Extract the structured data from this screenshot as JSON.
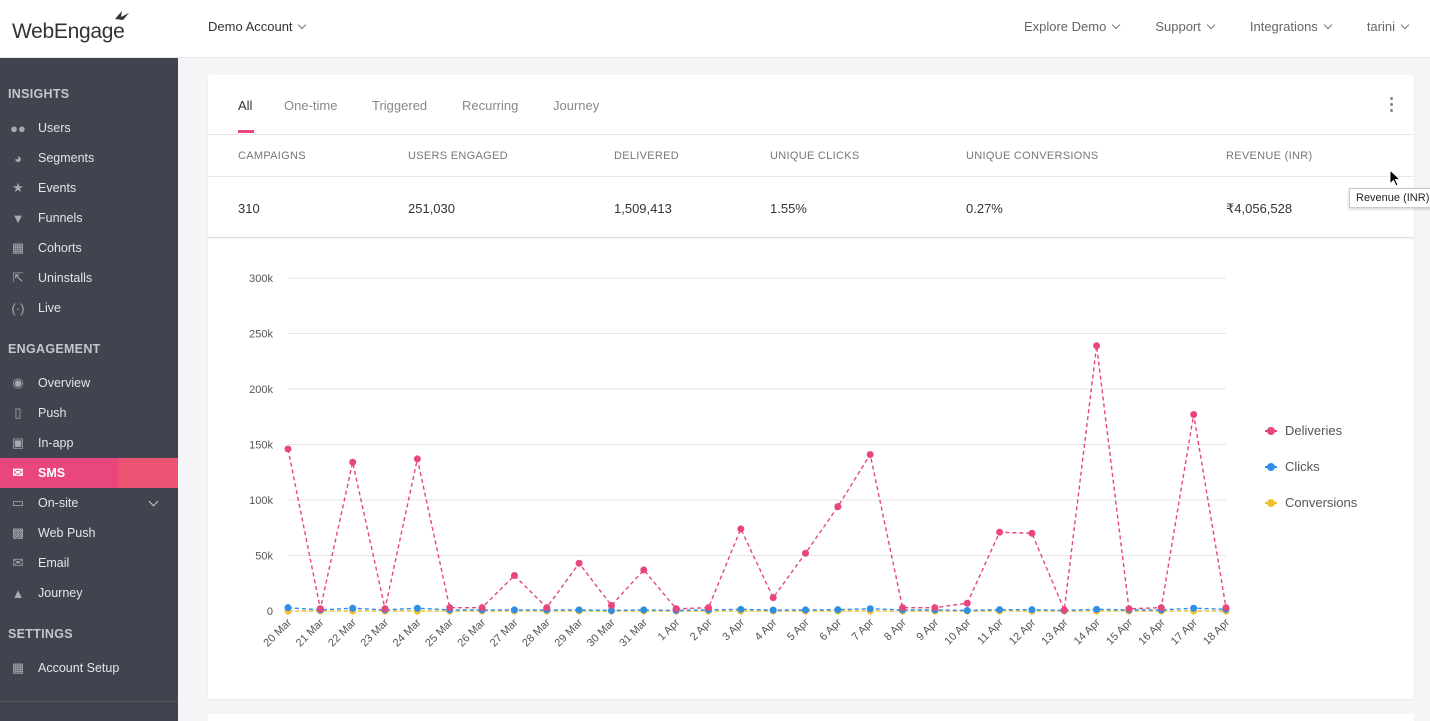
{
  "header": {
    "logo_text": "WebEngage",
    "account": "Demo Account",
    "nav": [
      "Explore Demo",
      "Support",
      "Integrations",
      "tarini"
    ]
  },
  "sidebar": {
    "sections": [
      {
        "title": "INSIGHTS",
        "items": [
          {
            "label": "Users",
            "icon": "users-icon"
          },
          {
            "label": "Segments",
            "icon": "pie-icon"
          },
          {
            "label": "Events",
            "icon": "star-icon"
          },
          {
            "label": "Funnels",
            "icon": "funnel-icon"
          },
          {
            "label": "Cohorts",
            "icon": "grid-icon"
          },
          {
            "label": "Uninstalls",
            "icon": "exit-icon"
          },
          {
            "label": "Live",
            "icon": "broadcast-icon"
          }
        ]
      },
      {
        "title": "ENGAGEMENT",
        "items": [
          {
            "label": "Overview",
            "icon": "eye-icon"
          },
          {
            "label": "Push",
            "icon": "phone-icon"
          },
          {
            "label": "In-app",
            "icon": "inapp-icon"
          },
          {
            "label": "SMS",
            "icon": "sms-icon",
            "active": true
          },
          {
            "label": "On-site",
            "icon": "onsite-icon",
            "expandable": true
          },
          {
            "label": "Web Push",
            "icon": "webpush-icon"
          },
          {
            "label": "Email",
            "icon": "email-icon"
          },
          {
            "label": "Journey",
            "icon": "rocket-icon"
          }
        ]
      },
      {
        "title": "SETTINGS",
        "items": [
          {
            "label": "Account Setup",
            "icon": "setup-icon"
          }
        ]
      }
    ]
  },
  "tabs": [
    "All",
    "One-time",
    "Triggered",
    "Recurring",
    "Journey"
  ],
  "active_tab": "All",
  "stats": {
    "headers": [
      "CAMPAIGNS",
      "USERS ENGAGED",
      "DELIVERED",
      "UNIQUE CLICKS",
      "UNIQUE CONVERSIONS",
      "REVENUE (INR)"
    ],
    "values": [
      "310",
      "251,030",
      "1,509,413",
      "1.55%",
      "0.27%",
      "₹4,056,528"
    ]
  },
  "tooltip": "Revenue (INR)",
  "colors": {
    "accent": "#e8467c",
    "deliveries": "#e8467c",
    "clicks": "#2f8fe8",
    "conversions": "#f2c12e",
    "sidebar": "#41434f"
  },
  "chart_data": {
    "type": "line",
    "categories": [
      "20 Mar",
      "21 Mar",
      "22 Mar",
      "23 Mar",
      "24 Mar",
      "25 Mar",
      "26 Mar",
      "27 Mar",
      "28 Mar",
      "29 Mar",
      "30 Mar",
      "31 Mar",
      "1 Apr",
      "2 Apr",
      "3 Apr",
      "4 Apr",
      "5 Apr",
      "6 Apr",
      "7 Apr",
      "8 Apr",
      "9 Apr",
      "10 Apr",
      "11 Apr",
      "12 Apr",
      "13 Apr",
      "14 Apr",
      "15 Apr",
      "16 Apr",
      "17 Apr",
      "18 Apr"
    ],
    "y_ticks": [
      "0",
      "50k",
      "100k",
      "150k",
      "200k",
      "250k",
      "300k"
    ],
    "ylim": [
      0,
      300000
    ],
    "grid": true,
    "legend_position": "right",
    "series": [
      {
        "name": "Deliveries",
        "color": "#e8467c",
        "values": [
          146000,
          2000,
          134000,
          2000,
          137000,
          3000,
          3000,
          32000,
          3000,
          43000,
          5000,
          37000,
          2000,
          3000,
          74000,
          12000,
          52000,
          94000,
          141000,
          3000,
          3000,
          7000,
          71000,
          70000,
          1000,
          239000,
          2000,
          3000,
          177000,
          3000
        ]
      },
      {
        "name": "Clicks",
        "color": "#2f8fe8",
        "values": [
          3000,
          1000,
          2500,
          1000,
          2500,
          1000,
          1000,
          1000,
          1000,
          1000,
          500,
          1000,
          500,
          1000,
          1500,
          800,
          1000,
          1200,
          2000,
          1000,
          1000,
          500,
          1200,
          1200,
          500,
          1500,
          1000,
          1000,
          2500,
          1500
        ]
      },
      {
        "name": "Conversions",
        "color": "#f2c12e",
        "values": [
          0,
          0,
          0,
          0,
          0,
          0,
          0,
          0,
          0,
          0,
          0,
          0,
          0,
          0,
          0,
          0,
          0,
          0,
          0,
          0,
          0,
          0,
          0,
          0,
          0,
          0,
          0,
          0,
          0,
          0
        ]
      }
    ]
  }
}
